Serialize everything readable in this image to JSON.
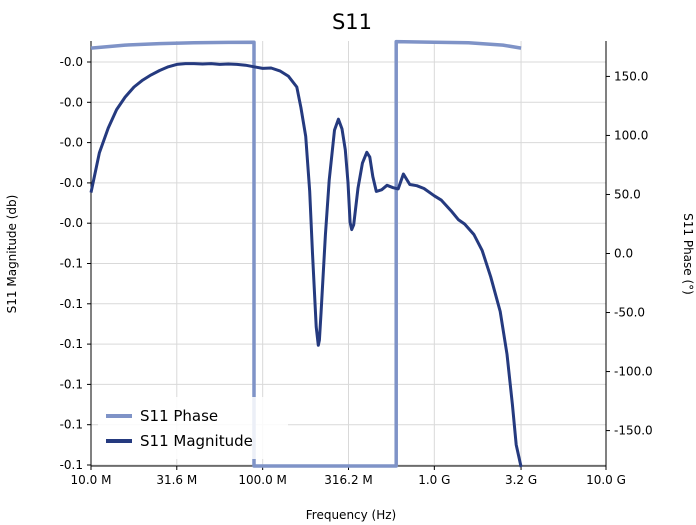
{
  "chart_data": {
    "type": "line",
    "title": "S11",
    "xlabel": "Frequency (Hz)",
    "ylabel_left": "S11 Magnitude (db)",
    "ylabel_right": "S11 Phase (°)",
    "x_scale": "log",
    "xlim": [
      10000000,
      10000000000
    ],
    "x_ticks": [
      {
        "value": 10000000,
        "label": "10.0 M"
      },
      {
        "value": 31600000,
        "label": "31.6 M"
      },
      {
        "value": 100000000,
        "label": "100.0 M"
      },
      {
        "value": 316200000,
        "label": "316.2 M"
      },
      {
        "value": 1000000000,
        "label": "1.0 G"
      },
      {
        "value": 3200000000,
        "label": "3.2 G"
      },
      {
        "value": 10000000000,
        "label": "10.0 G"
      }
    ],
    "left_ticks": [
      "-0.0",
      "-0.0",
      "-0.0",
      "-0.0",
      "-0.0",
      "-0.1",
      "-0.1",
      "-0.1",
      "-0.1",
      "-0.1",
      "-0.1"
    ],
    "left_ylim": [
      0,
      10
    ],
    "right_ylim": [
      -180,
      180
    ],
    "right_ticks": [
      {
        "value": 150,
        "label": "150.0"
      },
      {
        "value": 100,
        "label": "100.0"
      },
      {
        "value": 50,
        "label": "50.0"
      },
      {
        "value": 0,
        "label": "0.0"
      },
      {
        "value": -50,
        "label": "-50.0"
      },
      {
        "value": -100,
        "label": "-100.0"
      },
      {
        "value": -150,
        "label": "-150.0"
      }
    ],
    "grid": true,
    "legend_position": "bottom-left",
    "series": [
      {
        "name": "S11 Phase",
        "axis": "right",
        "color": "#7f93c7",
        "points": [
          [
            10000000,
            174.0
          ],
          [
            15800000,
            176.5
          ],
          [
            25100000,
            177.8
          ],
          [
            39800000,
            178.5
          ],
          [
            63100000,
            178.8
          ],
          [
            89000000,
            179.0
          ],
          [
            89000000,
            -180.0
          ],
          [
            600000000,
            -180.0
          ],
          [
            600000000,
            179.5
          ],
          [
            1000000000,
            179.0
          ],
          [
            1580000000,
            178.5
          ],
          [
            2510000000,
            176.5
          ],
          [
            3200000000,
            174.0
          ]
        ]
      },
      {
        "name": "S11 Magnitude",
        "axis": "left",
        "color": "#253a7f",
        "points": [
          [
            10000000,
            3.24
          ],
          [
            11200000,
            2.25
          ],
          [
            12600000,
            1.64
          ],
          [
            14100000,
            1.18
          ],
          [
            15800000,
            0.87
          ],
          [
            17800000,
            0.62
          ],
          [
            20000000,
            0.45
          ],
          [
            22400000,
            0.32
          ],
          [
            25100000,
            0.21
          ],
          [
            28200000,
            0.12
          ],
          [
            31600000,
            0.06
          ],
          [
            35500000,
            0.04
          ],
          [
            39800000,
            0.04
          ],
          [
            44700000,
            0.05
          ],
          [
            50100000,
            0.04
          ],
          [
            56200000,
            0.06
          ],
          [
            63100000,
            0.05
          ],
          [
            70800000,
            0.06
          ],
          [
            79400000,
            0.08
          ],
          [
            89100000,
            0.12
          ],
          [
            100000000,
            0.16
          ],
          [
            112000000,
            0.15
          ],
          [
            126000000,
            0.22
          ],
          [
            141000000,
            0.35
          ],
          [
            158000000,
            0.62
          ],
          [
            167000000,
            1.13
          ],
          [
            178000000,
            1.84
          ],
          [
            188000000,
            3.21
          ],
          [
            195000000,
            4.75
          ],
          [
            205000000,
            6.57
          ],
          [
            211000000,
            7.03
          ],
          [
            214000000,
            6.9
          ],
          [
            219000000,
            6.2
          ],
          [
            232000000,
            4.29
          ],
          [
            244000000,
            2.93
          ],
          [
            262000000,
            1.69
          ],
          [
            276000000,
            1.42
          ],
          [
            290000000,
            1.66
          ],
          [
            303000000,
            2.18
          ],
          [
            314000000,
            2.99
          ],
          [
            323000000,
            3.98
          ],
          [
            330000000,
            4.16
          ],
          [
            339000000,
            4.04
          ],
          [
            359000000,
            3.13
          ],
          [
            381000000,
            2.51
          ],
          [
            404000000,
            2.24
          ],
          [
            421000000,
            2.36
          ],
          [
            438000000,
            2.84
          ],
          [
            459000000,
            3.21
          ],
          [
            493000000,
            3.17
          ],
          [
            530000000,
            3.06
          ],
          [
            575000000,
            3.12
          ],
          [
            616000000,
            3.15
          ],
          [
            660000000,
            2.78
          ],
          [
            720000000,
            3.04
          ],
          [
            790000000,
            3.07
          ],
          [
            870000000,
            3.14
          ],
          [
            1000000000,
            3.32
          ],
          [
            1100000000,
            3.43
          ],
          [
            1250000000,
            3.69
          ],
          [
            1380000000,
            3.91
          ],
          [
            1500000000,
            4.02
          ],
          [
            1700000000,
            4.28
          ],
          [
            1900000000,
            4.68
          ],
          [
            2130000000,
            5.33
          ],
          [
            2420000000,
            6.19
          ],
          [
            2650000000,
            7.25
          ],
          [
            2850000000,
            8.5
          ],
          [
            3000000000,
            9.5
          ],
          [
            3200000000,
            10.05
          ]
        ]
      }
    ]
  }
}
